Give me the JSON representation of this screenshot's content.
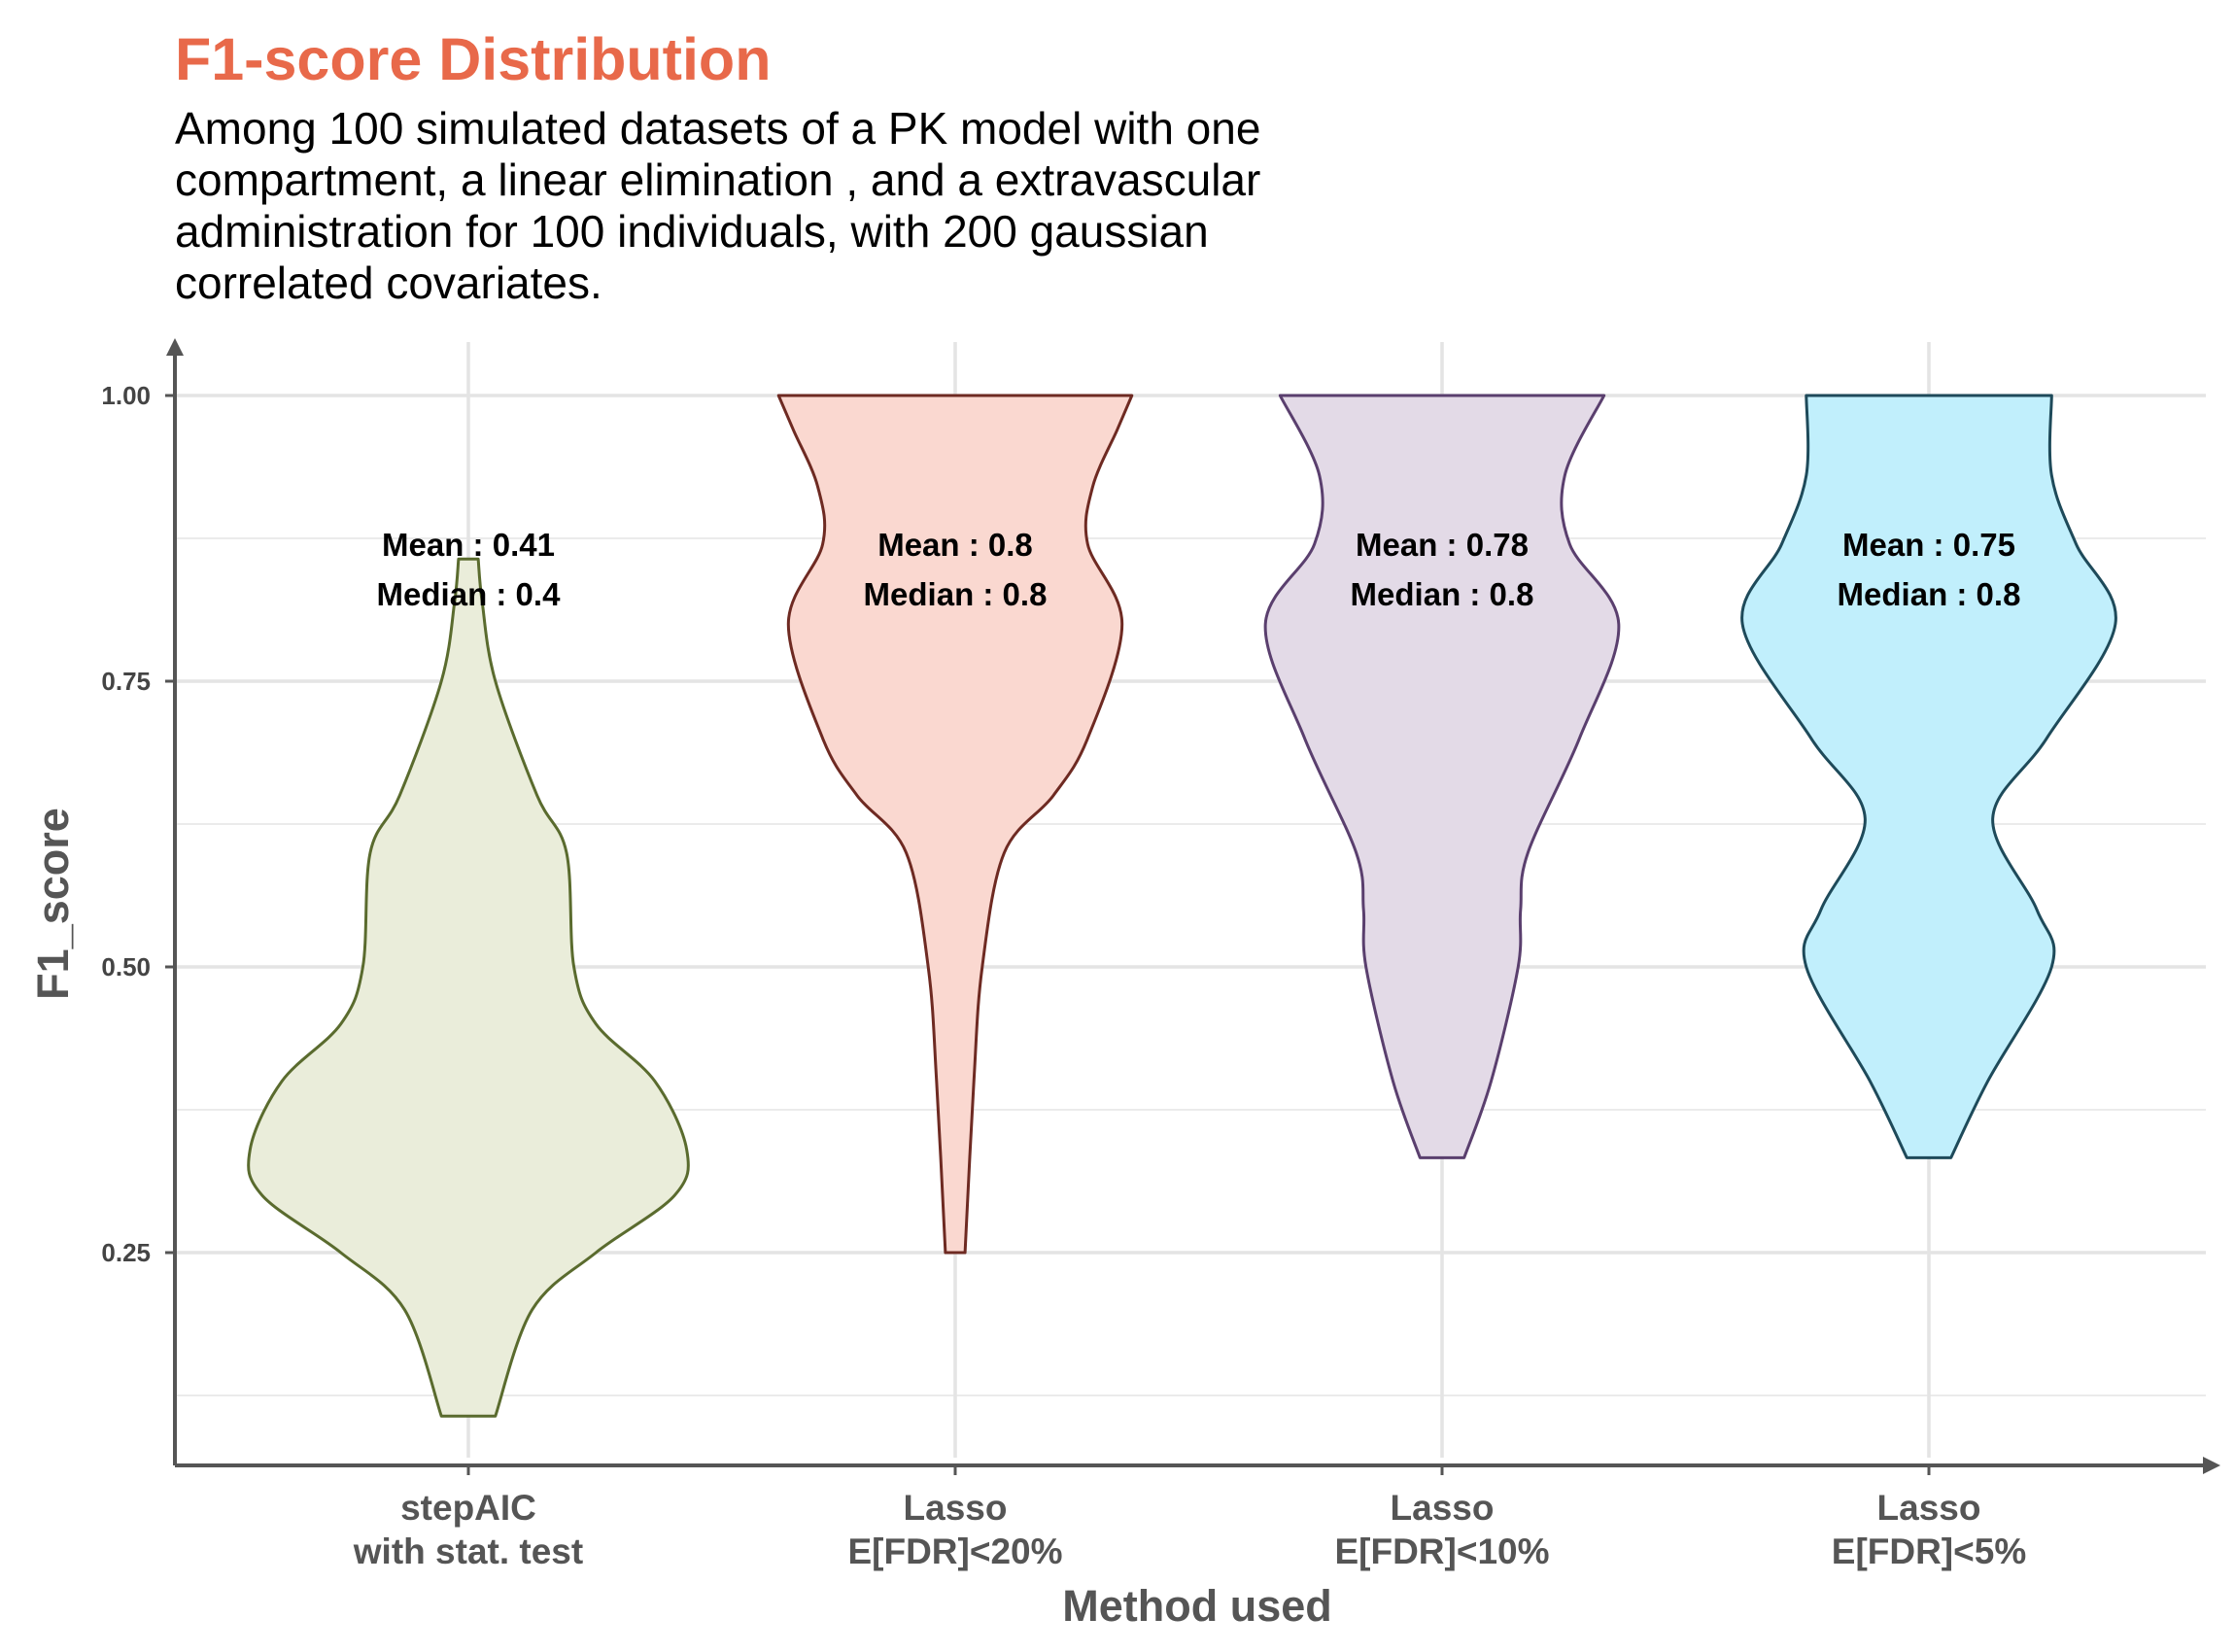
{
  "chart_data": {
    "type": "violin",
    "title": "F1-score Distribution",
    "subtitle_lines": [
      "Among 100 simulated datasets of a PK model with one",
      "compartment, a linear elimination , and a extravascular",
      "administration for 100 individuals, with 200 gaussian",
      "correlated covariates."
    ],
    "xlabel": "Method used",
    "ylabel": "F1_score",
    "ylim": [
      0.0625,
      1.0625
    ],
    "yticks": [
      0.25,
      0.5,
      0.75,
      1.0
    ],
    "ytick_labels": [
      "0.25",
      "0.50",
      "0.75",
      "1.00"
    ],
    "grid": true,
    "series": [
      {
        "category_lines": [
          "stepAIC",
          "with stat. test"
        ],
        "fill": "#EAEDDA",
        "stroke": "#5A6B2E",
        "mean_label": "Mean : 0.41",
        "median_label": "Median : 0.4",
        "mean": 0.41,
        "median": 0.4,
        "min": 0.107,
        "max": 0.857,
        "density": [
          [
            0.107,
            0.055
          ],
          [
            0.2,
            0.13
          ],
          [
            0.25,
            0.26
          ],
          [
            0.3,
            0.42
          ],
          [
            0.34,
            0.445
          ],
          [
            0.4,
            0.38
          ],
          [
            0.45,
            0.26
          ],
          [
            0.5,
            0.215
          ],
          [
            0.6,
            0.2
          ],
          [
            0.65,
            0.14
          ],
          [
            0.75,
            0.055
          ],
          [
            0.82,
            0.028
          ],
          [
            0.857,
            0.02
          ]
        ]
      },
      {
        "category_lines": [
          "Lasso",
          "E[FDR]<20%"
        ],
        "fill": "#FAD8D0",
        "stroke": "#6E2A22",
        "mean_label": "Mean : 0.8",
        "median_label": "Median : 0.8",
        "mean": 0.8,
        "median": 0.8,
        "min": 0.25,
        "max": 1.0,
        "density": [
          [
            0.25,
            0.02
          ],
          [
            0.4,
            0.038
          ],
          [
            0.5,
            0.055
          ],
          [
            0.6,
            0.1
          ],
          [
            0.65,
            0.2
          ],
          [
            0.7,
            0.27
          ],
          [
            0.8,
            0.34
          ],
          [
            0.87,
            0.27
          ],
          [
            0.92,
            0.28
          ],
          [
            0.97,
            0.33
          ],
          [
            1.0,
            0.36
          ]
        ]
      },
      {
        "category_lines": [
          "Lasso",
          "E[FDR]<10%"
        ],
        "fill": "#E3DAE7",
        "stroke": "#5A3F6E",
        "mean_label": "Mean : 0.78",
        "median_label": "Median : 0.8",
        "mean": 0.78,
        "median": 0.8,
        "min": 0.333,
        "max": 1.0,
        "density": [
          [
            0.333,
            0.045
          ],
          [
            0.4,
            0.1
          ],
          [
            0.5,
            0.155
          ],
          [
            0.55,
            0.16
          ],
          [
            0.6,
            0.175
          ],
          [
            0.7,
            0.28
          ],
          [
            0.8,
            0.36
          ],
          [
            0.87,
            0.26
          ],
          [
            0.93,
            0.25
          ],
          [
            1.0,
            0.33
          ]
        ]
      },
      {
        "category_lines": [
          "Lasso",
          "E[FDR]<5%"
        ],
        "fill": "#C1EFFC",
        "stroke": "#1E4A5A",
        "mean_label": "Mean : 0.75",
        "median_label": "Median : 0.8",
        "mean": 0.75,
        "median": 0.8,
        "min": 0.333,
        "max": 1.0,
        "density": [
          [
            0.333,
            0.045
          ],
          [
            0.4,
            0.12
          ],
          [
            0.5,
            0.25
          ],
          [
            0.55,
            0.22
          ],
          [
            0.63,
            0.13
          ],
          [
            0.7,
            0.24
          ],
          [
            0.8,
            0.38
          ],
          [
            0.87,
            0.3
          ],
          [
            0.93,
            0.25
          ],
          [
            1.0,
            0.25
          ]
        ]
      }
    ]
  }
}
